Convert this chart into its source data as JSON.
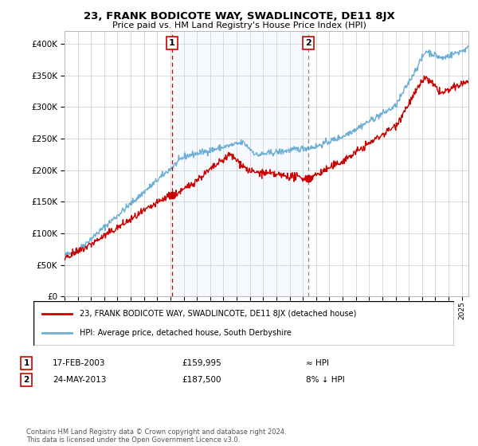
{
  "title": "23, FRANK BODICOTE WAY, SWADLINCOTE, DE11 8JX",
  "subtitle": "Price paid vs. HM Land Registry's House Price Index (HPI)",
  "ylim": [
    0,
    420000
  ],
  "yticks": [
    0,
    50000,
    100000,
    150000,
    200000,
    250000,
    300000,
    350000,
    400000
  ],
  "sale1": {
    "date_num": 2003.12,
    "price": 159995,
    "label": "1"
  },
  "sale2": {
    "date_num": 2013.39,
    "price": 187500,
    "label": "2"
  },
  "hpi_color": "#6baed6",
  "hpi_fill_color": "#ddeeff",
  "price_color": "#cc0000",
  "vline1_color": "#cc0000",
  "vline2_color": "#888888",
  "legend_label1": "23, FRANK BODICOTE WAY, SWADLINCOTE, DE11 8JX (detached house)",
  "legend_label2": "HPI: Average price, detached house, South Derbyshire",
  "table_row1": [
    "1",
    "17-FEB-2003",
    "£159,995",
    "≈ HPI"
  ],
  "table_row2": [
    "2",
    "24-MAY-2013",
    "£187,500",
    "8% ↓ HPI"
  ],
  "footer": "Contains HM Land Registry data © Crown copyright and database right 2024.\nThis data is licensed under the Open Government Licence v3.0.",
  "xmin": 1995,
  "xmax": 2025.5
}
